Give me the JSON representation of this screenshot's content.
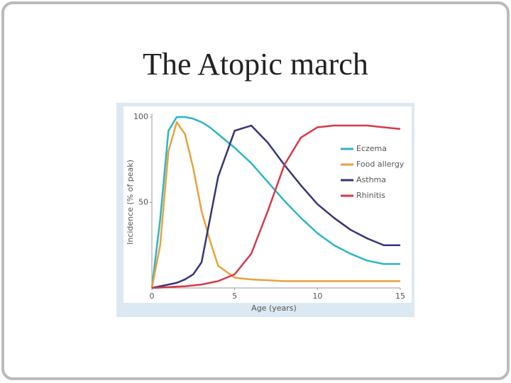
{
  "chart_data": {
    "type": "line",
    "title": "The Atopic march",
    "x": [
      0,
      0.5,
      1,
      1.5,
      2,
      2.5,
      3,
      3.5,
      4,
      5,
      6,
      7,
      8,
      9,
      10,
      11,
      12,
      13,
      14,
      15
    ],
    "series": [
      {
        "name": "Eczema",
        "color": "#2bb5c8",
        "values": [
          0,
          40,
          92,
          100,
          100,
          99,
          97,
          94,
          90,
          82,
          73,
          62,
          51,
          41,
          32,
          25,
          20,
          16,
          14,
          14
        ]
      },
      {
        "name": "Food allergy",
        "color": "#e8a23a",
        "values": [
          0,
          25,
          80,
          97,
          90,
          70,
          45,
          28,
          13,
          6,
          5,
          4.5,
          4,
          4,
          4,
          4,
          4,
          4,
          4,
          4
        ]
      },
      {
        "name": "Asthma",
        "color": "#35357a",
        "values": [
          0,
          1,
          2,
          3,
          5,
          8,
          15,
          40,
          65,
          92,
          95,
          85,
          72,
          60,
          49,
          41,
          34,
          29,
          25,
          25
        ]
      },
      {
        "name": "Rhinitis",
        "color": "#d63a4a",
        "values": [
          0,
          0.2,
          0.5,
          0.8,
          1,
          1.5,
          2,
          3,
          4,
          8,
          20,
          45,
          72,
          88,
          94,
          95,
          95,
          95,
          94,
          93
        ]
      }
    ],
    "xlabel": "Age (years)",
    "ylabel": "Incidence (% of peak)",
    "xlim": [
      0,
      15
    ],
    "ylim": [
      0,
      100
    ],
    "xticks": [
      0,
      5,
      10,
      15
    ],
    "yticks": [
      50,
      100
    ],
    "grid": false,
    "legend": "upper right"
  }
}
